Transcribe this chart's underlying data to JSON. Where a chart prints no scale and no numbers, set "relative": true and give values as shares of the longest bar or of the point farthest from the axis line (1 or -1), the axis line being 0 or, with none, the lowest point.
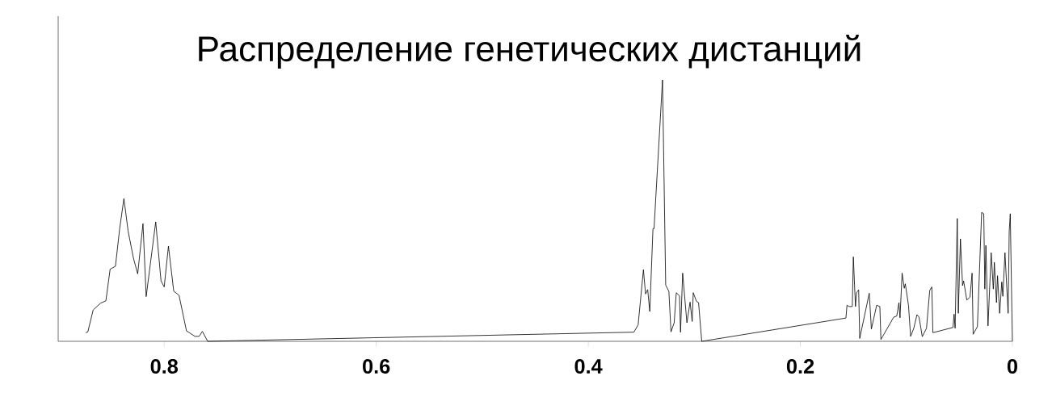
{
  "chart_data": {
    "type": "line",
    "title": "Распределение генетических дистанций",
    "relative": true,
    "color": "#000000",
    "xlim": [
      0.9,
      0
    ],
    "xticks": [
      0.8,
      0.6,
      0.4,
      0.2,
      0
    ],
    "x": [
      0.874,
      0.872,
      0.867,
      0.86,
      0.855,
      0.851,
      0.846,
      0.842,
      0.838,
      0.834,
      0.829,
      0.825,
      0.82,
      0.817,
      0.808,
      0.803,
      0.8,
      0.796,
      0.791,
      0.786,
      0.779,
      0.771,
      0.767,
      0.764,
      0.759,
      0.357,
      0.353,
      0.348,
      0.346,
      0.344,
      0.342,
      0.339,
      0.338,
      0.33,
      0.327,
      0.324,
      0.322,
      0.319,
      0.317,
      0.314,
      0.313,
      0.311,
      0.307,
      0.304,
      0.302,
      0.301,
      0.298,
      0.296,
      0.293,
      0.157,
      0.156,
      0.154,
      0.151,
      0.15,
      0.148,
      0.147,
      0.145,
      0.144,
      0.135,
      0.133,
      0.128,
      0.125,
      0.124,
      0.112,
      0.109,
      0.107,
      0.106,
      0.104,
      0.102,
      0.101,
      0.098,
      0.096,
      0.093,
      0.09,
      0.088,
      0.085,
      0.081,
      0.078,
      0.076,
      0.075,
      0.056,
      0.055,
      0.054,
      0.052,
      0.051,
      0.049,
      0.047,
      0.046,
      0.043,
      0.04,
      0.038,
      0.037,
      0.033,
      0.029,
      0.027,
      0.026,
      0.025,
      0.023,
      0.02,
      0.018,
      0.017,
      0.015,
      0.014,
      0.012,
      0.01,
      0.009,
      0.007,
      0.004,
      0.003,
      0.002,
      0.0
    ],
    "values": [
      0.033,
      0.036,
      0.12,
      0.146,
      0.155,
      0.276,
      0.287,
      0.431,
      0.546,
      0.421,
      0.318,
      0.258,
      0.45,
      0.171,
      0.457,
      0.231,
      0.208,
      0.364,
      0.192,
      0.176,
      0.04,
      0.019,
      0.019,
      0.038,
      0.0,
      0.035,
      0.063,
      0.274,
      0.181,
      0.198,
      0.114,
      0.431,
      0.431,
      1.0,
      0.215,
      0.191,
      0.036,
      0.071,
      0.186,
      0.174,
      0.035,
      0.261,
      0.071,
      0.15,
      0.076,
      0.186,
      0.153,
      0.148,
      0.0,
      0.089,
      0.138,
      0.133,
      0.133,
      0.323,
      0.133,
      0.186,
      0.197,
      0.011,
      0.184,
      0.047,
      0.138,
      0.133,
      0.007,
      0.092,
      0.097,
      0.148,
      0.09,
      0.261,
      0.203,
      0.22,
      0.138,
      0.019,
      0.05,
      0.102,
      0.092,
      0.018,
      0.05,
      0.194,
      0.208,
      0.033,
      0.053,
      0.104,
      0.05,
      0.47,
      0.107,
      0.392,
      0.213,
      0.231,
      0.158,
      0.169,
      0.261,
      0.027,
      0.056,
      0.493,
      0.488,
      0.2,
      0.367,
      0.059,
      0.339,
      0.2,
      0.302,
      0.148,
      0.251,
      0.107,
      0.227,
      0.172,
      0.339,
      0.107,
      0.421,
      0.488,
      0.0
    ],
    "grid": false,
    "marker": "none",
    "line_style": "solid"
  }
}
